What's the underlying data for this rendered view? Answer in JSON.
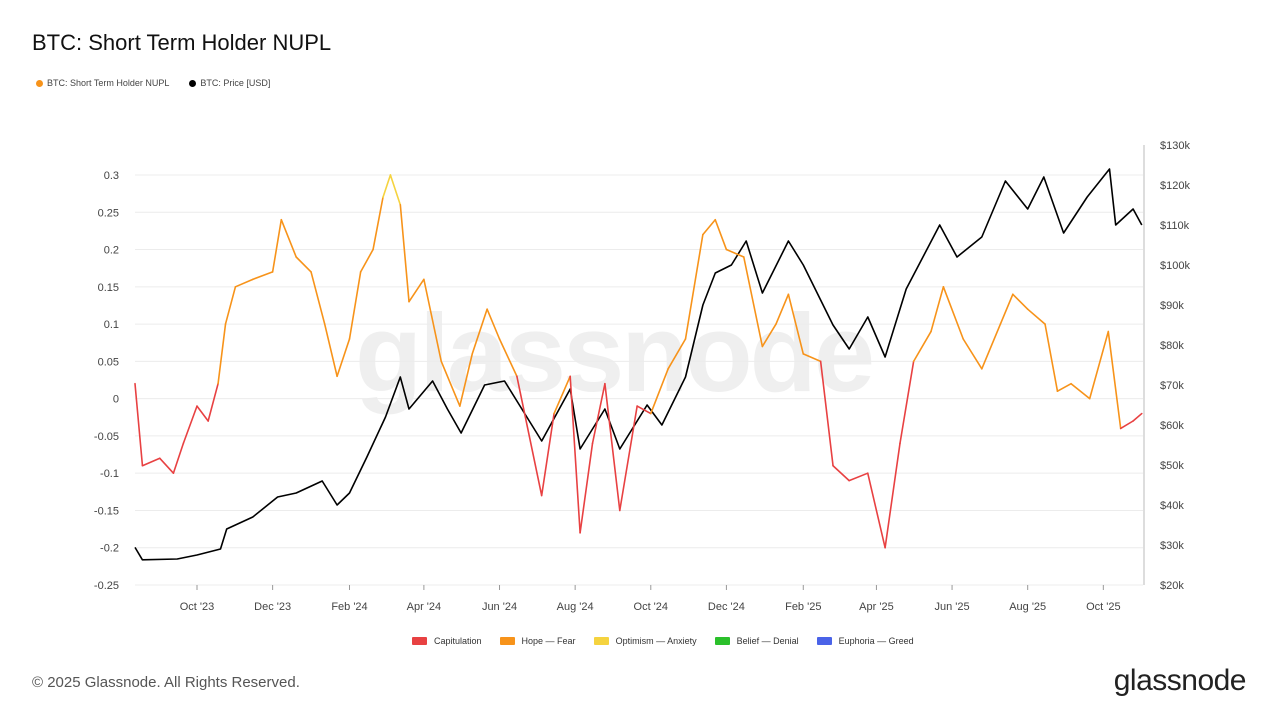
{
  "chart_data": {
    "type": "line",
    "title": "BTC: Short Term Holder NUPL",
    "legend_top": [
      {
        "name": "BTC: Short Term Holder NUPL",
        "color": "#f7931a"
      },
      {
        "name": "BTC: Price [USD]",
        "color": "#000000"
      }
    ],
    "legend_bottom": [
      {
        "name": "Capitulation",
        "color": "#e84142"
      },
      {
        "name": "Hope — Fear",
        "color": "#f7931a"
      },
      {
        "name": "Optimism — Anxiety",
        "color": "#f5d33f"
      },
      {
        "name": "Belief — Denial",
        "color": "#2bc02b"
      },
      {
        "name": "Euphoria — Greed",
        "color": "#4a63e8"
      }
    ],
    "x_ticks": [
      "Oct '23",
      "Dec '23",
      "Feb '24",
      "Apr '24",
      "Jun '24",
      "Aug '24",
      "Oct '24",
      "Dec '24",
      "Feb '25",
      "Apr '25",
      "Jun '25",
      "Aug '25",
      "Oct '25"
    ],
    "x_tick_dates": [
      "2023-10-01",
      "2023-12-01",
      "2024-02-01",
      "2024-04-01",
      "2024-06-01",
      "2024-08-01",
      "2024-10-01",
      "2024-12-01",
      "2025-02-01",
      "2025-04-01",
      "2025-06-01",
      "2025-08-01",
      "2025-10-01"
    ],
    "xlim": [
      "2023-08-12",
      "2025-11-02"
    ],
    "y_left": {
      "ticks": [
        "0.3",
        "0.25",
        "0.2",
        "0.15",
        "0.1",
        "0.05",
        "0",
        "-0.05",
        "-0.1",
        "-0.15",
        "-0.2",
        "-0.25"
      ],
      "ylim": [
        -0.25,
        0.3
      ]
    },
    "y_right": {
      "ticks": [
        "$130k",
        "$120k",
        "$110k",
        "$100k",
        "$90k",
        "$80k",
        "$70k",
        "$60k",
        "$50k",
        "$40k",
        "$30k",
        "$20k"
      ],
      "ylim": [
        20000,
        130000
      ],
      "scale": "linear"
    },
    "series": [
      {
        "name": "BTC: Short Term Holder NUPL",
        "axis": "left",
        "x": [
          "2023-08-12",
          "2023-08-18",
          "2023-09-01",
          "2023-09-12",
          "2023-09-20",
          "2023-10-01",
          "2023-10-10",
          "2023-10-18",
          "2023-10-24",
          "2023-11-01",
          "2023-11-15",
          "2023-12-01",
          "2023-12-08",
          "2023-12-20",
          "2024-01-01",
          "2024-01-12",
          "2024-01-22",
          "2024-02-01",
          "2024-02-10",
          "2024-02-20",
          "2024-02-28",
          "2024-03-05",
          "2024-03-13",
          "2024-03-20",
          "2024-04-01",
          "2024-04-15",
          "2024-04-30",
          "2024-05-10",
          "2024-05-22",
          "2024-06-01",
          "2024-06-15",
          "2024-06-25",
          "2024-07-05",
          "2024-07-15",
          "2024-07-28",
          "2024-08-05",
          "2024-08-15",
          "2024-08-25",
          "2024-09-06",
          "2024-09-20",
          "2024-10-01",
          "2024-10-15",
          "2024-10-29",
          "2024-11-12",
          "2024-11-22",
          "2024-12-01",
          "2024-12-15",
          "2024-12-30",
          "2025-01-10",
          "2025-01-20",
          "2025-02-01",
          "2025-02-15",
          "2025-02-25",
          "2025-03-10",
          "2025-03-25",
          "2025-04-08",
          "2025-04-20",
          "2025-05-01",
          "2025-05-15",
          "2025-05-25",
          "2025-06-10",
          "2025-06-25",
          "2025-07-10",
          "2025-07-20",
          "2025-08-01",
          "2025-08-15",
          "2025-08-25",
          "2025-09-05",
          "2025-09-20",
          "2025-10-05",
          "2025-10-15",
          "2025-10-25",
          "2025-11-01"
        ],
        "values": [
          0.02,
          -0.09,
          -0.08,
          -0.1,
          -0.06,
          -0.01,
          -0.03,
          0.02,
          0.1,
          0.15,
          0.16,
          0.17,
          0.24,
          0.19,
          0.17,
          0.1,
          0.03,
          0.08,
          0.17,
          0.2,
          0.27,
          0.3,
          0.26,
          0.13,
          0.16,
          0.05,
          -0.01,
          0.06,
          0.12,
          0.08,
          0.03,
          -0.05,
          -0.13,
          -0.02,
          0.03,
          -0.18,
          -0.06,
          0.02,
          -0.15,
          -0.01,
          -0.02,
          0.04,
          0.08,
          0.22,
          0.24,
          0.2,
          0.19,
          0.07,
          0.1,
          0.14,
          0.06,
          0.05,
          -0.09,
          -0.11,
          -0.1,
          -0.2,
          -0.06,
          0.05,
          0.09,
          0.15,
          0.08,
          0.04,
          0.1,
          0.14,
          0.12,
          0.1,
          0.01,
          0.02,
          0.0,
          0.09,
          -0.04,
          -0.03,
          -0.02
        ]
      },
      {
        "name": "BTC: Price [USD]",
        "axis": "right",
        "x": [
          "2023-08-12",
          "2023-08-18",
          "2023-09-15",
          "2023-10-01",
          "2023-10-20",
          "2023-10-25",
          "2023-11-15",
          "2023-12-05",
          "2023-12-20",
          "2024-01-10",
          "2024-01-22",
          "2024-02-01",
          "2024-02-15",
          "2024-03-01",
          "2024-03-13",
          "2024-03-20",
          "2024-04-08",
          "2024-04-20",
          "2024-05-01",
          "2024-05-20",
          "2024-06-05",
          "2024-06-25",
          "2024-07-05",
          "2024-07-28",
          "2024-08-05",
          "2024-08-25",
          "2024-09-06",
          "2024-09-28",
          "2024-10-10",
          "2024-10-29",
          "2024-11-12",
          "2024-11-22",
          "2024-12-05",
          "2024-12-17",
          "2024-12-30",
          "2025-01-20",
          "2025-02-01",
          "2025-02-25",
          "2025-03-10",
          "2025-03-25",
          "2025-04-08",
          "2025-04-25",
          "2025-05-22",
          "2025-06-05",
          "2025-06-25",
          "2025-07-14",
          "2025-08-01",
          "2025-08-14",
          "2025-08-30",
          "2025-09-18",
          "2025-10-06",
          "2025-10-11",
          "2025-10-25",
          "2025-11-01"
        ],
        "values": [
          29400,
          26300,
          26500,
          27500,
          29000,
          34000,
          37000,
          42000,
          43000,
          46000,
          40000,
          43000,
          52000,
          62000,
          72000,
          64000,
          71000,
          64000,
          58000,
          70000,
          71000,
          61000,
          56000,
          69000,
          54000,
          64000,
          54000,
          65000,
          60000,
          72000,
          90000,
          98000,
          100000,
          106000,
          93000,
          106000,
          100000,
          85000,
          79000,
          87000,
          77000,
          94000,
          110000,
          102000,
          107000,
          121000,
          114000,
          122000,
          108000,
          117000,
          124000,
          110000,
          114000,
          110000
        ]
      }
    ],
    "thresholds": {
      "capitulation_below": 0,
      "optimism_above": 0.25
    },
    "grid": true
  },
  "watermark": "glassnode",
  "footer": {
    "copyright": "© 2025 Glassnode. All Rights Reserved.",
    "brand": "glassnode"
  }
}
